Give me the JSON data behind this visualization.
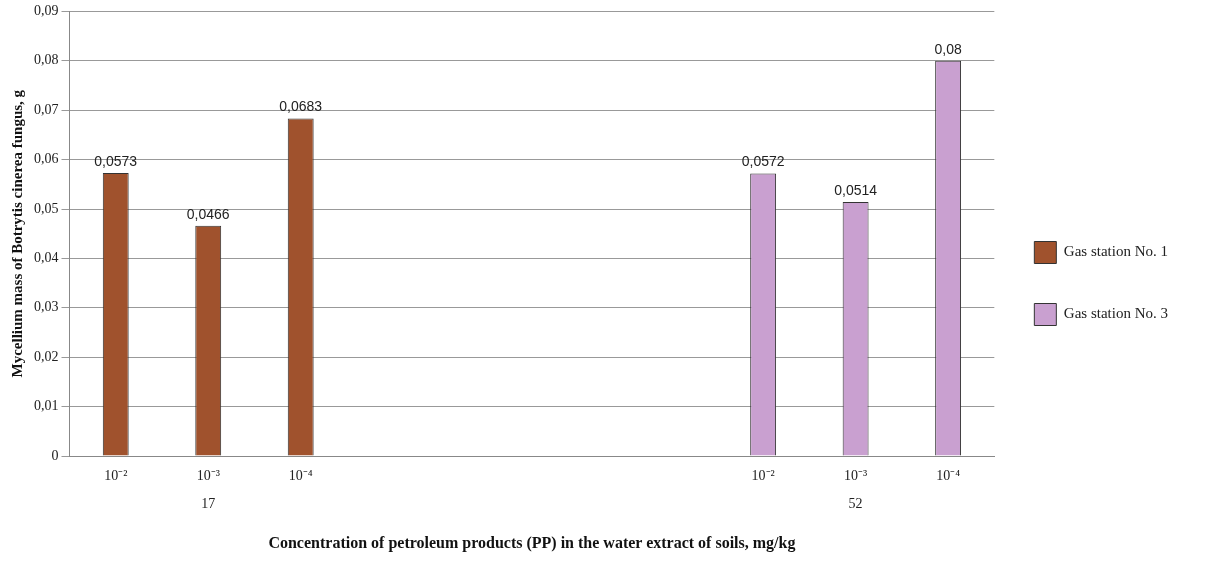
{
  "chart_data": {
    "type": "bar",
    "xlabel": "Concentration of petroleum products (PP) in the water extract of soils, mg/kg",
    "ylabel": "Mycellium mass of Botrytis cinerea fungus, g",
    "categories": [
      "10⁻²",
      "10⁻³",
      "10⁻⁴",
      null,
      null,
      null,
      null,
      "10⁻²",
      "10⁻³",
      "10⁻⁴"
    ],
    "series": [
      {
        "name": "Gas station No. 1",
        "color": "#a0522d",
        "values": [
          0.0573,
          0.0466,
          0.0683,
          null,
          null,
          null,
          null,
          null,
          null,
          null
        ],
        "value_labels": [
          "0,0573",
          "0,0466",
          "0,0683",
          null,
          null,
          null,
          null,
          null,
          null,
          null
        ]
      },
      {
        "name": "Gas station No. 3",
        "color": "#c9a0d0",
        "values": [
          null,
          null,
          null,
          null,
          null,
          null,
          null,
          0.0572,
          0.0514,
          0.08
        ],
        "value_labels": [
          null,
          null,
          null,
          null,
          null,
          null,
          null,
          "0,0572",
          "0,0514",
          "0,08"
        ]
      }
    ],
    "ylim": [
      0,
      0.09
    ],
    "yticks": [
      {
        "value": 0,
        "label": "0"
      },
      {
        "value": 0.01,
        "label": "0,01"
      },
      {
        "value": 0.02,
        "label": "0,02"
      },
      {
        "value": 0.03,
        "label": "0,03"
      },
      {
        "value": 0.04,
        "label": "0,04"
      },
      {
        "value": 0.05,
        "label": "0,05"
      },
      {
        "value": 0.06,
        "label": "0,06"
      },
      {
        "value": 0.07,
        "label": "0,07"
      },
      {
        "value": 0.08,
        "label": "0,08"
      },
      {
        "value": 0.09,
        "label": "0,09"
      }
    ],
    "grid": "y",
    "legend": "right",
    "annotations": [
      "17",
      "52"
    ]
  }
}
